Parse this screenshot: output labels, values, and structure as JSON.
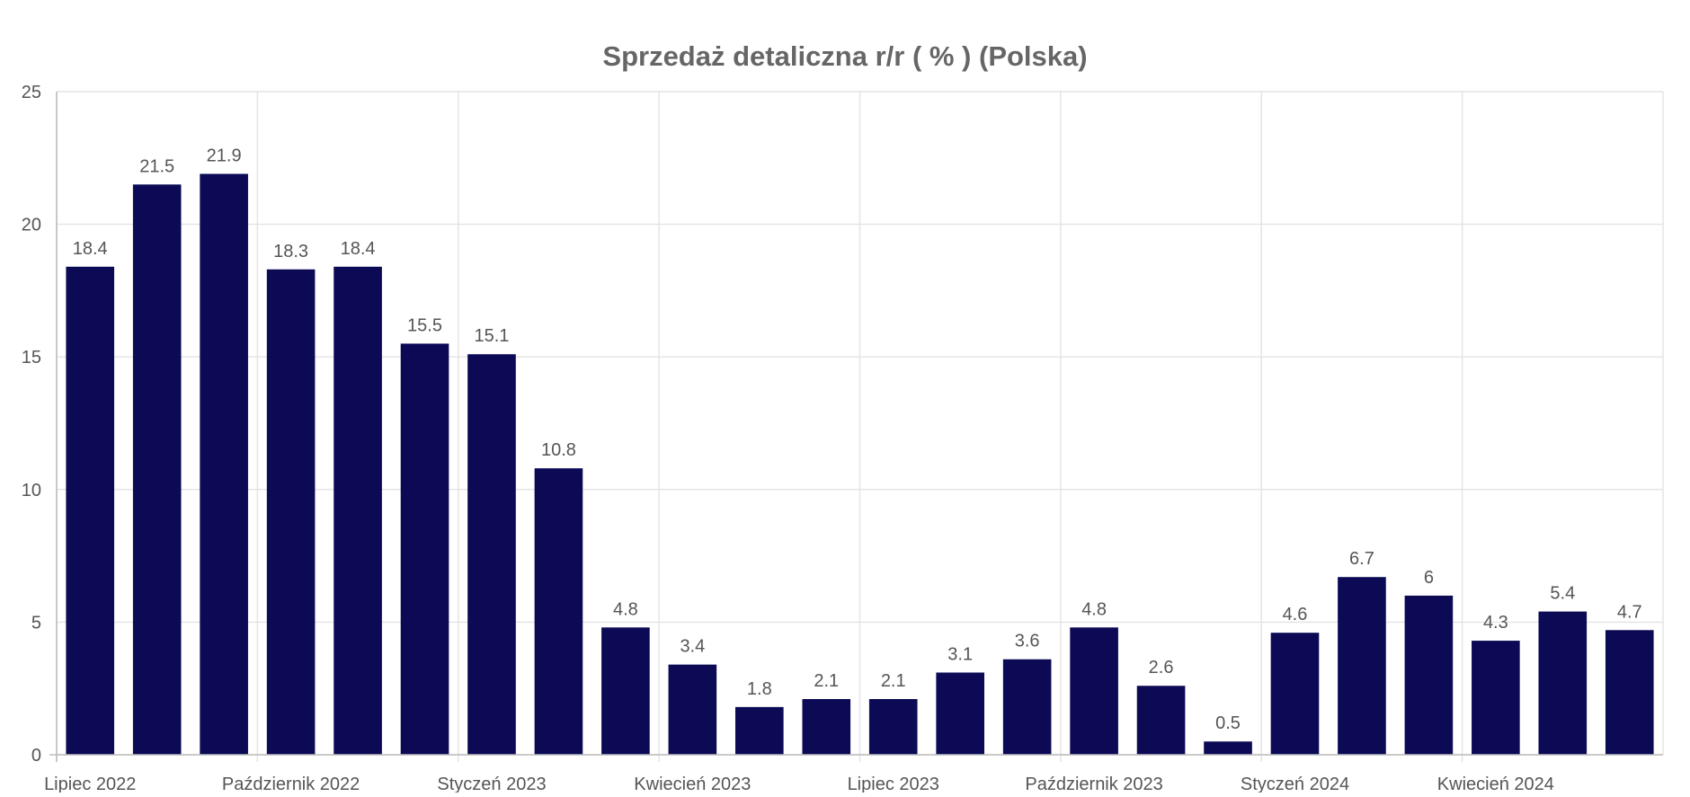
{
  "chart_data": {
    "type": "bar",
    "title": "Sprzedaż detaliczna r/r ( % ) (Polska)",
    "xlabel": "",
    "ylabel": "",
    "ylim": [
      0,
      25
    ],
    "y_ticks": [
      "0",
      "5",
      "10",
      "15",
      "20",
      "25"
    ],
    "x_tick_labels": [
      "Lipiec 2022",
      "Październik 2022",
      "Styczeń 2023",
      "Kwiecień 2023",
      "Lipiec 2023",
      "Październik 2023",
      "Styczeń 2024",
      "Kwiecień 2024"
    ],
    "x_tick_label_every": 3,
    "grid": true,
    "legend": "none",
    "bar_color": "#0c0a55",
    "values": [
      18.4,
      21.5,
      21.9,
      18.3,
      18.4,
      15.5,
      15.1,
      10.8,
      4.8,
      3.4,
      1.8,
      2.1,
      2.1,
      3.1,
      3.6,
      4.8,
      2.6,
      0.5,
      4.6,
      6.7,
      6,
      4.3,
      5.4,
      4.7
    ],
    "value_labels": [
      "18.4",
      "21.5",
      "21.9",
      "18.3",
      "18.4",
      "15.5",
      "15.1",
      "10.8",
      "4.8",
      "3.4",
      "1.8",
      "2.1",
      "2.1",
      "3.1",
      "3.6",
      "4.8",
      "2.6",
      "0.5",
      "4.6",
      "6.7",
      "6",
      "4.3",
      "5.4",
      "4.7"
    ]
  }
}
